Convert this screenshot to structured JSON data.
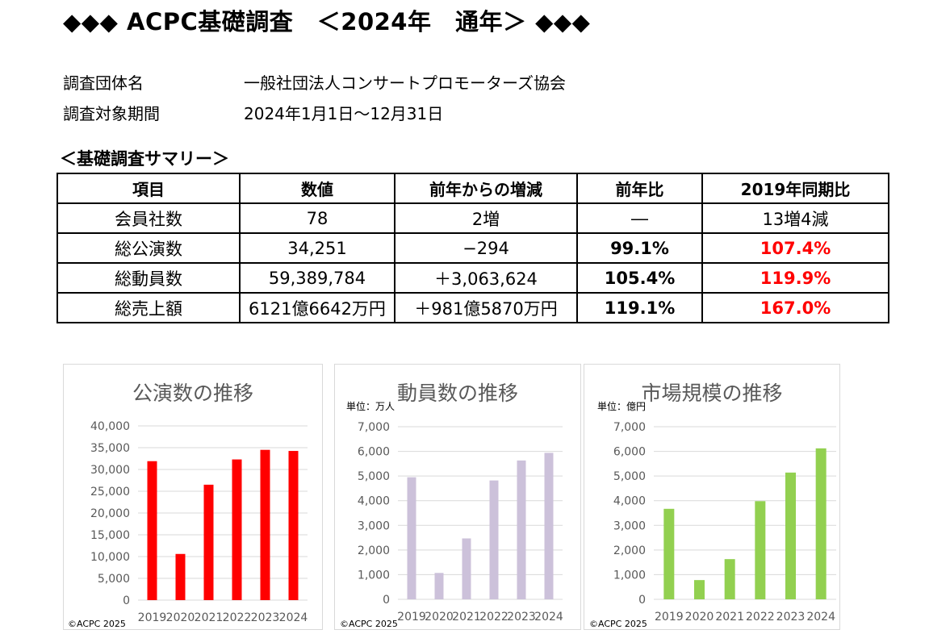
{
  "title": "◆◆◆ ACPC基礎調査　＜2024年　通年＞ ◆◆◆",
  "info": [
    {
      "label": "調査団体名",
      "value": "一般社団法人コンサートプロモーターズ協会"
    },
    {
      "label": "調査対象期間",
      "value": "2024年1月1日～12月31日"
    }
  ],
  "summary_heading": "＜基礎調査サマリー＞",
  "summary_table": {
    "headers": [
      "項目",
      "数値",
      "前年からの増減",
      "前年比",
      "2019年同期比"
    ],
    "rows": [
      [
        "会員社数",
        "78",
        "2増",
        "―",
        "13増4減"
      ],
      [
        "総公演数",
        "34,251",
        "−294",
        "99.1%",
        "107.4%"
      ],
      [
        "総動員数",
        "59,389,784",
        "＋3,063,624",
        "105.4%",
        "119.9%"
      ],
      [
        "総売上額",
        "6121億6642万円",
        "＋981億5870万円",
        "119.1%",
        "167.0%"
      ]
    ]
  },
  "colors": {
    "red_highlight": "#ff0000",
    "chart1_bar": "#ff0000",
    "chart2_bar": "#ccc1da",
    "chart3_bar": "#92d050",
    "gridline": "#d9d9d9",
    "axis_text": "#595959"
  },
  "chart_data": [
    {
      "type": "bar",
      "title": "公演数の推移",
      "unit": "",
      "copyright": "©ACPC 2025",
      "categories": [
        "2019",
        "2020",
        "2021",
        "2022",
        "2023",
        "2024"
      ],
      "values": [
        31900,
        10600,
        26500,
        32300,
        34500,
        34251
      ],
      "ylim": [
        0,
        40000
      ],
      "yticks": [
        0,
        5000,
        10000,
        15000,
        20000,
        25000,
        30000,
        35000,
        40000
      ],
      "ytick_labels": [
        "0",
        "5,000",
        "10,000",
        "15,000",
        "20,000",
        "25,000",
        "30,000",
        "35,000",
        "40,000"
      ],
      "grid": true
    },
    {
      "type": "bar",
      "title": "動員数の推移",
      "unit": "単位：万人",
      "copyright": "©ACPC 2025",
      "categories": [
        "2019",
        "2020",
        "2021",
        "2022",
        "2023",
        "2024"
      ],
      "values": [
        4950,
        1070,
        2470,
        4820,
        5630,
        5939
      ],
      "ylim": [
        0,
        7000
      ],
      "yticks": [
        0,
        1000,
        2000,
        3000,
        4000,
        5000,
        6000,
        7000
      ],
      "ytick_labels": [
        "0",
        "1,000",
        "2,000",
        "3,000",
        "4,000",
        "5,000",
        "6,000",
        "7,000"
      ],
      "grid": true
    },
    {
      "type": "bar",
      "title": "市場規模の推移",
      "unit": "単位：億円",
      "copyright": "©ACPC 2025",
      "categories": [
        "2019",
        "2020",
        "2021",
        "2022",
        "2023",
        "2024"
      ],
      "values": [
        3670,
        780,
        1630,
        3980,
        5140,
        6122
      ],
      "ylim": [
        0,
        7000
      ],
      "yticks": [
        0,
        1000,
        2000,
        3000,
        4000,
        5000,
        6000,
        7000
      ],
      "ytick_labels": [
        "0",
        "1,000",
        "2,000",
        "3,000",
        "4,000",
        "5,000",
        "6,000",
        "7,000"
      ],
      "grid": true
    }
  ]
}
